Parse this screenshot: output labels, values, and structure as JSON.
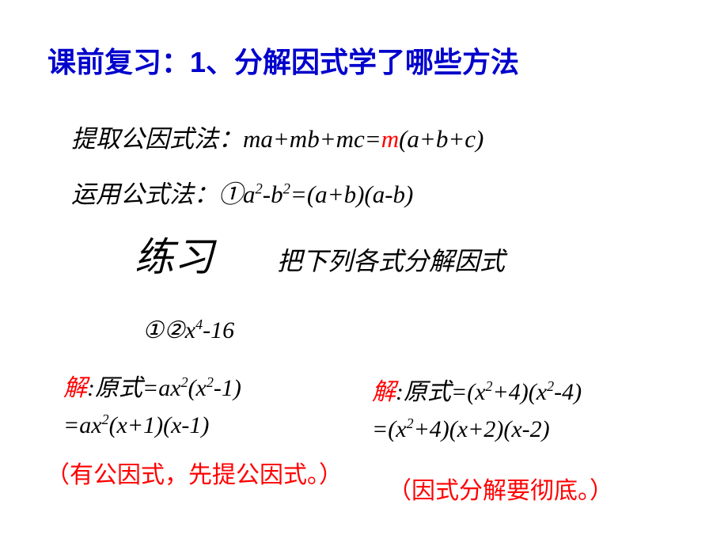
{
  "colors": {
    "title": "#0000cc",
    "highlight": "#ff0000",
    "body": "#000000",
    "background": "#ffffff"
  },
  "typography": {
    "title_fontsize": 36,
    "body_fontsize": 31,
    "practice_fontsize": 50,
    "note_fontsize": 30,
    "title_family": "SimHei",
    "body_family": "KaiTi"
  },
  "title": "课前复习：1、分解因式学了哪些方法",
  "method1_label": "提取公因式法：",
  "method1_formula_pre": "ma+mb+mc=",
  "method1_formula_m": "m",
  "method1_formula_post": "(a+b+c)",
  "method2_label": "运用公式法：",
  "method2_formula": "① a²-b²=(a+b)(a-b)",
  "practice_heading": "练习",
  "practice_sub": "把下列各式分解因式",
  "exercise_left": "①② x⁴-16",
  "solution_left_prefix": "解",
  "solution_left_line1": ":原式=ax²(x²-1)",
  "solution_left_line2": "=ax²(x+1)(x-1)",
  "note_left": "（有公因式，先提公因式。）",
  "solution_right_prefix": "解",
  "solution_right_line1": ":原式=(x²+4)(x²-4)",
  "solution_right_line2": "=(x²+4)(x+2)(x-2)",
  "note_right": "（因式分解要彻底。）"
}
